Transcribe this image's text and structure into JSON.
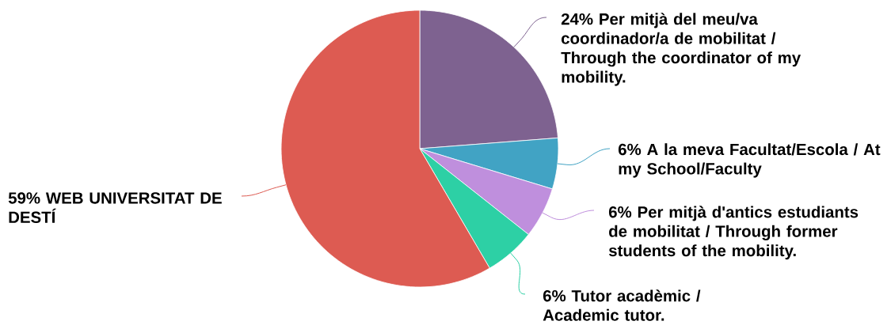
{
  "chart_data": {
    "type": "pie",
    "categories": [
      "Per mitjà del meu/va coordinador/a de mobilitat / Through the coordinator of my mobility.",
      "A la meva Facultat/Escola / At my School/Faculty",
      "Per mitjà d'antics estudiants de mobilitat / Through former students of the mobility.",
      "Tutor acadèmic / Academic tutor.",
      "WEB UNIVERSITAT DE DESTÍ"
    ],
    "values": [
      24,
      6,
      6,
      6,
      59
    ],
    "value_labels": [
      "24%",
      "6%",
      "6%",
      "6%",
      "59%"
    ],
    "colors": [
      "#7e6290",
      "#41a3c4",
      "#bf8fdd",
      "#2dd0a5",
      "#dd5b52"
    ]
  }
}
